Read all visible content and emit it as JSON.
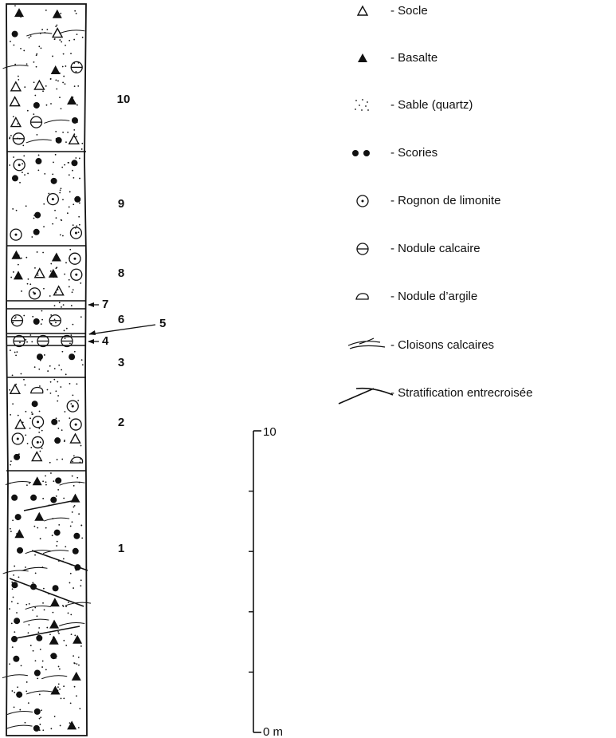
{
  "layers": [
    {
      "label": "10"
    },
    {
      "label": "9"
    },
    {
      "label": "8"
    },
    {
      "label": "7"
    },
    {
      "label": "6"
    },
    {
      "label": "5"
    },
    {
      "label": "4"
    },
    {
      "label": "3"
    },
    {
      "label": "2"
    },
    {
      "label": "1"
    }
  ],
  "legend": [
    {
      "label": "- Socle"
    },
    {
      "label": "- Basalte"
    },
    {
      "label": "- Sable (quartz)"
    },
    {
      "label": "- Scories"
    },
    {
      "label": "- Rognon de limonite"
    },
    {
      "label": "- Nodule calcaire"
    },
    {
      "label": "- Nodule d’argile"
    },
    {
      "label": "- Cloisons calcaires"
    },
    {
      "label": "- Stratification entrecroisée"
    }
  ],
  "scale": {
    "top_label": "10",
    "bottom_label": "0 m"
  }
}
